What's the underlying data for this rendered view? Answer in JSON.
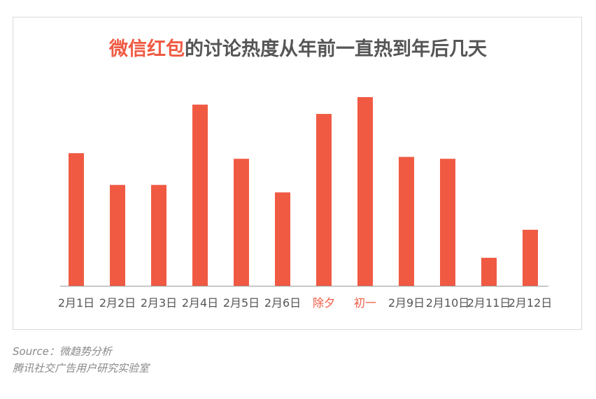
{
  "chart_data": {
    "type": "bar",
    "title_highlight": "微信红包",
    "title_rest": "的讨论热度从年前一直热到年后几天",
    "categories": [
      "2月1日",
      "2月2日",
      "2月3日",
      "2月4日",
      "2月5日",
      "2月6日",
      "除夕",
      "初一",
      "2月9日",
      "2月10日",
      "2月11日",
      "2月12日"
    ],
    "highlighted_categories": [
      "除夕",
      "初一"
    ],
    "values": [
      71,
      54,
      54,
      97,
      68,
      50,
      92,
      101,
      69,
      68,
      15,
      30
    ],
    "ylim": [
      0,
      101
    ],
    "xlabel": "",
    "ylabel": "",
    "grid": false,
    "legend": "none"
  },
  "colors": {
    "bar": "#f05a43",
    "highlight_label": "#f05a43",
    "axis_label": "#555555",
    "title": "#555555",
    "axis_line": "#999999"
  },
  "source": {
    "line1": "Source：微趋势分析",
    "line2": "腾讯社交广告用户研究实验室"
  }
}
